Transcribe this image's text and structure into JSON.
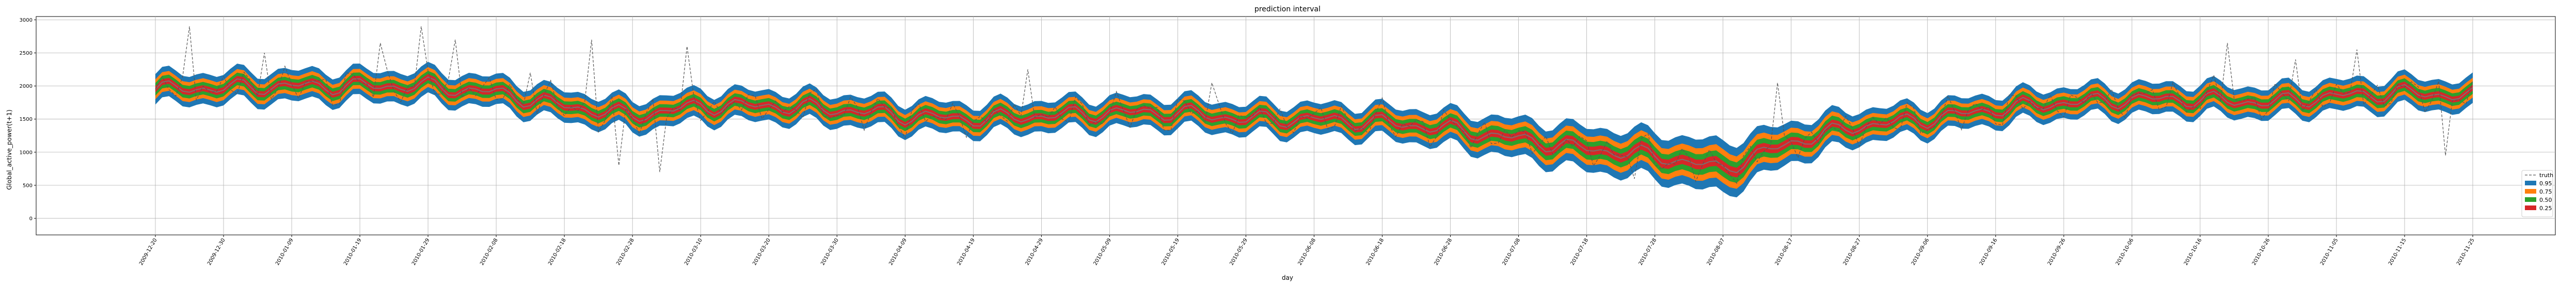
{
  "chart_data": {
    "type": "area",
    "title": "prediction interval",
    "xlabel": "day",
    "ylabel": "Global_active_power(t+1)",
    "ylim": [
      -250,
      3050
    ],
    "yticks": [
      0,
      500,
      1000,
      1500,
      2000,
      2500,
      3000
    ],
    "grid": true,
    "legend_position": "lower-right",
    "x_start": "2009-12-20",
    "x_end": "2010-11-25",
    "xticks": [
      "2009-12-20",
      "2009-12-30",
      "2010-01-09",
      "2010-01-19",
      "2010-01-29",
      "2010-02-08",
      "2010-02-18",
      "2010-02-28",
      "2010-03-10",
      "2010-03-20",
      "2010-03-30",
      "2010-04-09",
      "2010-04-19",
      "2010-04-29",
      "2010-05-09",
      "2010-05-19",
      "2010-05-29",
      "2010-06-08",
      "2010-06-18",
      "2010-06-28",
      "2010-07-08",
      "2010-07-18",
      "2010-07-28",
      "2010-08-07",
      "2010-08-17",
      "2010-08-27",
      "2010-09-06",
      "2010-09-16",
      "2010-09-26",
      "2010-10-06",
      "2010-10-16",
      "2010-10-26",
      "2010-11-05",
      "2010-11-15",
      "2010-11-25"
    ],
    "median_anchors": [
      [
        "2009-12-20",
        1950
      ],
      [
        "2010-01-09",
        2000
      ],
      [
        "2010-01-29",
        2000
      ],
      [
        "2010-02-08",
        1900
      ],
      [
        "2010-02-18",
        1700
      ],
      [
        "2010-02-28",
        1550
      ],
      [
        "2010-03-10",
        1700
      ],
      [
        "2010-03-20",
        1700
      ],
      [
        "2010-03-30",
        1650
      ],
      [
        "2010-04-09",
        1550
      ],
      [
        "2010-04-19",
        1500
      ],
      [
        "2010-04-29",
        1550
      ],
      [
        "2010-05-09",
        1600
      ],
      [
        "2010-05-19",
        1600
      ],
      [
        "2010-05-29",
        1500
      ],
      [
        "2010-06-08",
        1500
      ],
      [
        "2010-06-18",
        1450
      ],
      [
        "2010-06-28",
        1350
      ],
      [
        "2010-07-08",
        1200
      ],
      [
        "2010-07-18",
        1050
      ],
      [
        "2010-07-28",
        950
      ],
      [
        "2010-08-07",
        750
      ],
      [
        "2010-08-17",
        1150
      ],
      [
        "2010-08-27",
        1400
      ],
      [
        "2010-09-06",
        1500
      ],
      [
        "2010-09-16",
        1650
      ],
      [
        "2010-09-26",
        1750
      ],
      [
        "2010-10-06",
        1800
      ],
      [
        "2010-10-16",
        1800
      ],
      [
        "2010-10-26",
        1750
      ],
      [
        "2010-11-05",
        1850
      ],
      [
        "2010-11-15",
        1900
      ],
      [
        "2010-11-25",
        1850
      ]
    ],
    "truth_spikes": [
      [
        "2009-12-25",
        2900
      ],
      [
        "2009-12-27",
        2000
      ],
      [
        "2010-01-05",
        2500
      ],
      [
        "2010-01-22",
        2650
      ],
      [
        "2010-01-28",
        2900
      ],
      [
        "2010-02-02",
        2700
      ],
      [
        "2010-02-13",
        2200
      ],
      [
        "2010-02-22",
        2700
      ],
      [
        "2010-02-26",
        800
      ],
      [
        "2010-03-04",
        700
      ],
      [
        "2010-03-08",
        2600
      ],
      [
        "2010-04-27",
        2250
      ],
      [
        "2010-05-24",
        2050
      ],
      [
        "2010-07-25",
        600
      ],
      [
        "2010-08-15",
        2050
      ],
      [
        "2010-10-20",
        2650
      ],
      [
        "2010-10-30",
        2400
      ],
      [
        "2010-11-08",
        2550
      ],
      [
        "2010-11-21",
        950
      ]
    ],
    "series": [
      {
        "name": "truth",
        "color": "#555555",
        "style": "dashed"
      },
      {
        "name": "0.95",
        "color": "#1f77b4",
        "half_width": 230
      },
      {
        "name": "0.75",
        "color": "#ff7f0e",
        "half_width": 150
      },
      {
        "name": "0.50",
        "color": "#2ca02c",
        "half_width": 95
      },
      {
        "name": "0.25",
        "color": "#d62728",
        "half_width": 45
      }
    ]
  }
}
